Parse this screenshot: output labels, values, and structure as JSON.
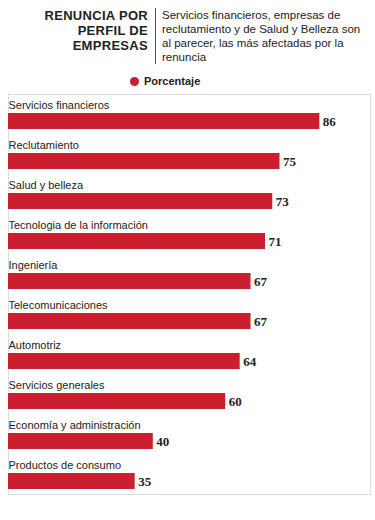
{
  "chart_data": {
    "type": "bar",
    "title": "RENUNCIA POR PERFIL DE EMPRESAS",
    "subtitle": "Servicios financieros, empresas de reclutamiento y de Salud y Belleza son al parecer, las más afectadas por la renuncia",
    "orientation": "horizontal",
    "categories": [
      "Servicios financieros",
      "Reclutamiento",
      "Salud y belleza",
      "Tecnologia de la información",
      "Ingeniería",
      "Telecomunicaciones",
      "Automotriz",
      "Servicios generales",
      "Economía y administración",
      "Productos de consumo"
    ],
    "series": [
      {
        "name": "Porcentaje",
        "color": "#c8202f",
        "values": [
          86,
          75,
          73,
          71,
          67,
          67,
          64,
          60,
          40,
          35
        ]
      }
    ],
    "xlim": [
      0,
      100
    ],
    "data_labels": true,
    "tick_labels": false,
    "legend": "top"
  }
}
